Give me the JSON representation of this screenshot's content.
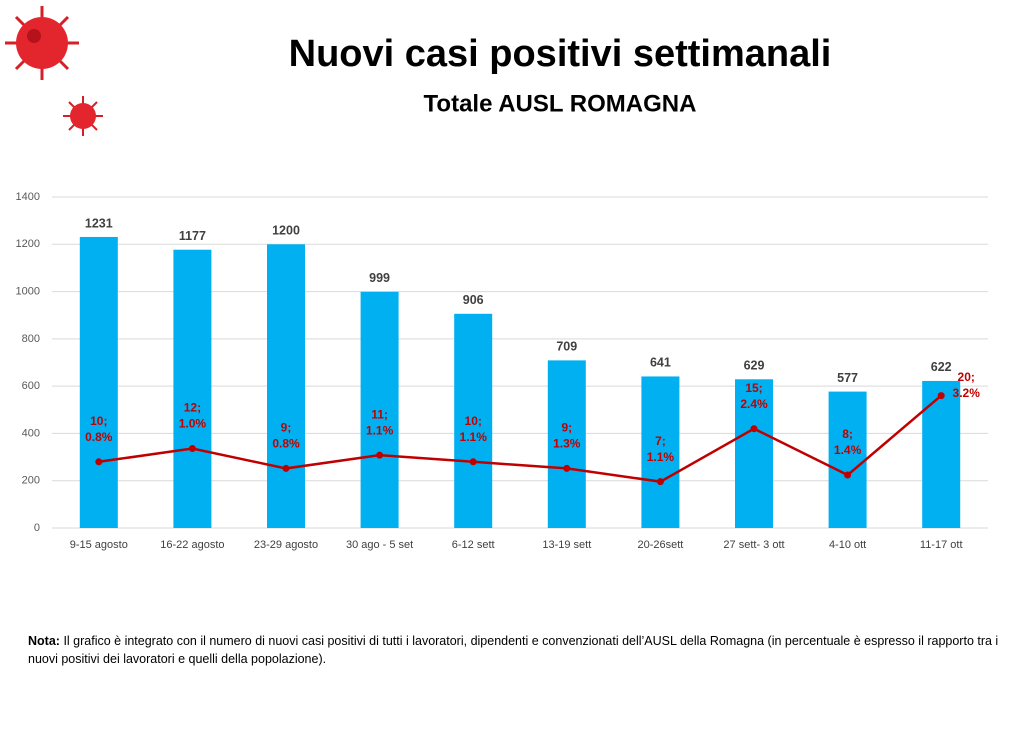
{
  "chart_data": {
    "type": "bar",
    "title": "Nuovi casi positivi settimanali",
    "subtitle": "Totale AUSL ROMAGNA",
    "categories": [
      "9-15 agosto",
      "16-22 agosto",
      "23-29 agosto",
      "30 ago - 5 set",
      "6-12 sett",
      "13-19 sett",
      "20-26sett",
      "27 sett- 3 ott",
      "4-10 ott",
      "11-17 ott"
    ],
    "series": [
      {
        "type": "bar",
        "color": "#00b0f0",
        "values": [
          1231,
          1177,
          1200,
          999,
          906,
          709,
          641,
          629,
          577,
          622
        ]
      },
      {
        "type": "line",
        "axis": "y2",
        "color": "#c00000",
        "values": [
          10,
          12,
          9,
          11,
          10,
          9,
          7,
          15,
          8,
          20
        ],
        "value_labels": [
          "10;",
          "12;",
          "9;",
          "11;",
          "10;",
          "9;",
          "7;",
          "15;",
          "8;",
          "20;"
        ],
        "shares": [
          0.8,
          1.0,
          0.8,
          1.1,
          1.1,
          1.3,
          1.1,
          2.4,
          1.4,
          3.2
        ],
        "share_labels": [
          "0.8%",
          "1.0%",
          "0.8%",
          "1.1%",
          "1.1%",
          "1.3%",
          "1.1%",
          "2.4%",
          "1.4%",
          "3.2%"
        ]
      }
    ],
    "ylim": [
      0,
      1400
    ],
    "yticks": [
      0,
      200,
      400,
      600,
      800,
      1000,
      1200,
      1400
    ],
    "y2lim": [
      0,
      50
    ],
    "grid": true
  },
  "note": {
    "label": "Nota:",
    "text": "Il grafico è integrato con il numero di nuovi casi positivi di tutti i lavoratori, dipendenti e convenzionati dell’AUSL della Romagna (in percentuale è espresso il rapporto tra i nuovi positivi dei lavoratori e quelli della popolazione)."
  }
}
